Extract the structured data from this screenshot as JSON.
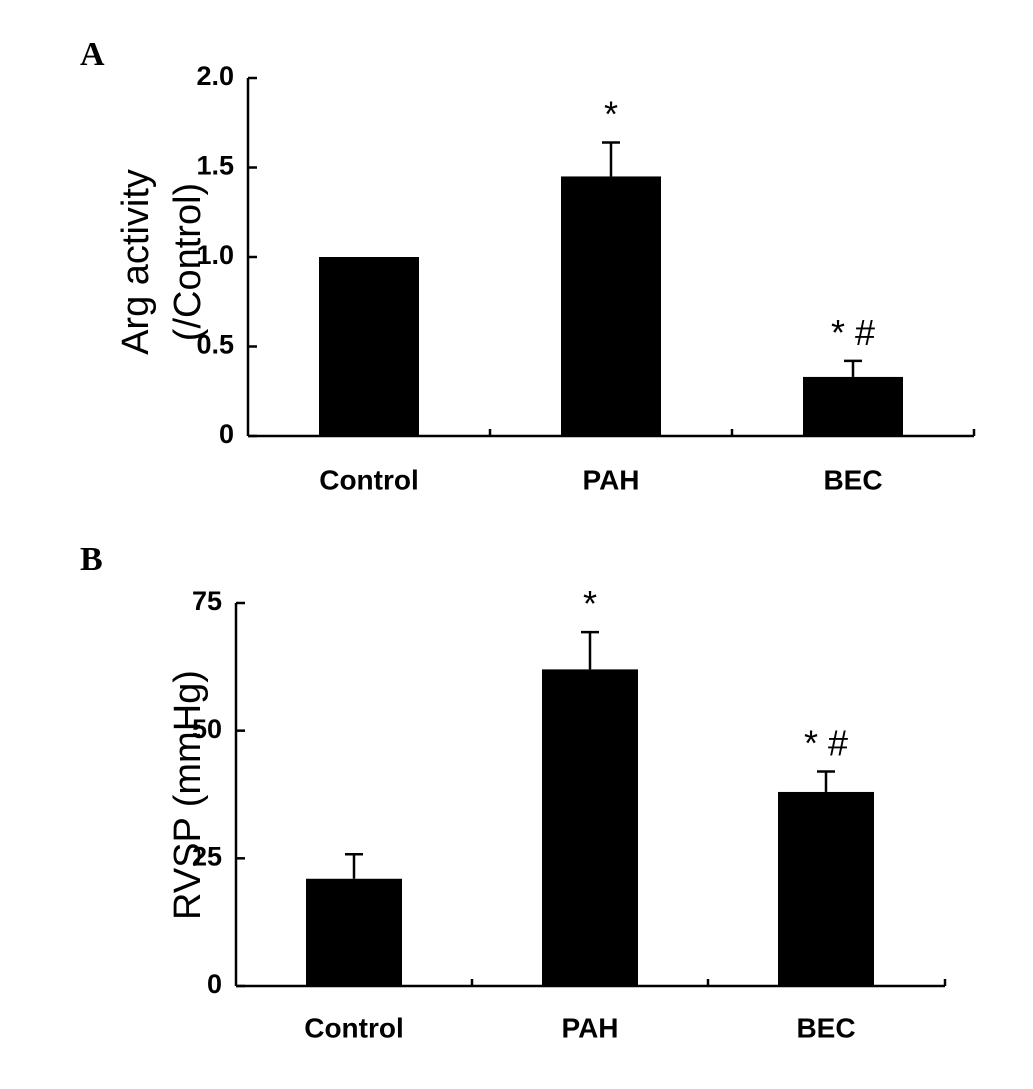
{
  "chart_data": [
    {
      "type": "bar",
      "panel_label": "A",
      "title": "",
      "xlabel": "",
      "ylabel_lines": [
        "Arg activity",
        "(/Control)"
      ],
      "categories": [
        "Control",
        "PAH",
        "BEC"
      ],
      "values": [
        1.0,
        1.45,
        0.33
      ],
      "errors": [
        0,
        0.19,
        0.09
      ],
      "annotations": [
        "",
        "*",
        "* #"
      ],
      "ylim": [
        0,
        2.0
      ],
      "yticks": [
        0,
        0.5,
        1.0,
        1.5,
        2.0
      ],
      "ytick_labels": [
        "0",
        "0.5",
        "1.0",
        "1.5",
        "2.0"
      ],
      "bar_color": "#000000",
      "grid": false
    },
    {
      "type": "bar",
      "panel_label": "B",
      "title": "",
      "xlabel": "",
      "ylabel_lines": [
        "RVSP (mmHg)"
      ],
      "categories": [
        "Control",
        "PAH",
        "BEC"
      ],
      "values": [
        21,
        62,
        38
      ],
      "errors": [
        4.8,
        7.3,
        4.0
      ],
      "annotations": [
        "",
        "*",
        "* #"
      ],
      "ylim": [
        0,
        75
      ],
      "yticks": [
        0,
        25,
        50,
        75
      ],
      "ytick_labels": [
        "0",
        "25",
        "50",
        "75"
      ],
      "bar_color": "#000000",
      "grid": false
    }
  ]
}
